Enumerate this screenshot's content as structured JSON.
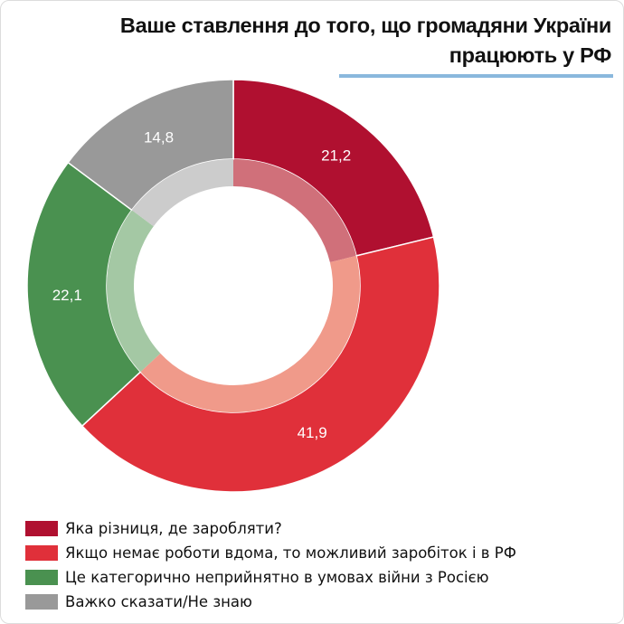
{
  "chart_data": {
    "type": "pie",
    "title": "Ваше ставлення до того, що громадяни України працюють у РФ",
    "categories": [
      "Яка різниця, де заробляти?",
      "Якщо немає роботи вдома, то можливий заробіток і в РФ",
      "Це категорично неприйнятно в умовах війни з Росією",
      "Важко сказати/Не знаю"
    ],
    "values": [
      21.2,
      41.9,
      22.1,
      14.8
    ],
    "value_labels": [
      "21,2",
      "41,9",
      "22,1",
      "14,8"
    ],
    "colors": [
      "#b01030",
      "#e0303a",
      "#4a9150",
      "#999999"
    ],
    "inner_colors": [
      "#d0707a",
      "#f09a8a",
      "#a4c8a4",
      "#cccccc"
    ],
    "legend_placement": "bottom-left"
  }
}
